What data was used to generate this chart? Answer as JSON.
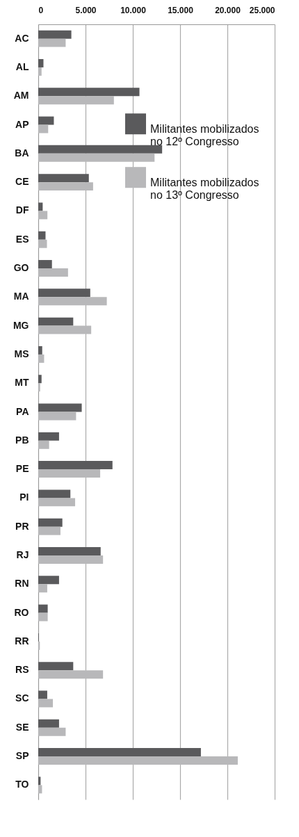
{
  "chart_data": {
    "type": "bar",
    "orientation": "horizontal",
    "categories": [
      "AC",
      "AL",
      "AM",
      "AP",
      "BA",
      "CE",
      "DF",
      "ES",
      "GO",
      "MA",
      "MG",
      "MS",
      "MT",
      "PA",
      "PB",
      "PE",
      "PI",
      "PR",
      "RJ",
      "RN",
      "RO",
      "RR",
      "RS",
      "SC",
      "SE",
      "SP",
      "TO"
    ],
    "series": [
      {
        "name": "Militantes mobilizados no 12º Congresso",
        "color": "#5a5a5c",
        "values": [
          3500,
          550,
          10700,
          1650,
          13100,
          5350,
          470,
          770,
          1450,
          5500,
          3700,
          420,
          350,
          4600,
          2200,
          7850,
          3400,
          2550,
          6600,
          2200,
          1000,
          70,
          3700,
          950,
          2200,
          17200,
          250
        ]
      },
      {
        "name": "Militantes mobilizados no 13º Congresso",
        "color": "#b8b8ba",
        "values": [
          2900,
          350,
          8000,
          1050,
          12300,
          5800,
          970,
          920,
          3150,
          7250,
          5600,
          620,
          200,
          4000,
          1150,
          6550,
          3900,
          2350,
          6850,
          950,
          1000,
          170,
          6850,
          1550,
          2900,
          21100,
          400
        ]
      }
    ],
    "xlim": [
      0,
      25000
    ],
    "xticks": [
      {
        "value": 0,
        "label": "0"
      },
      {
        "value": 5000,
        "label": "5.000"
      },
      {
        "value": 10000,
        "label": "10.000"
      },
      {
        "value": 15000,
        "label": "15.000"
      },
      {
        "value": 20000,
        "label": "20.000"
      },
      {
        "value": 25000,
        "label": "25.000"
      }
    ],
    "grid": "x",
    "legend": "right"
  }
}
